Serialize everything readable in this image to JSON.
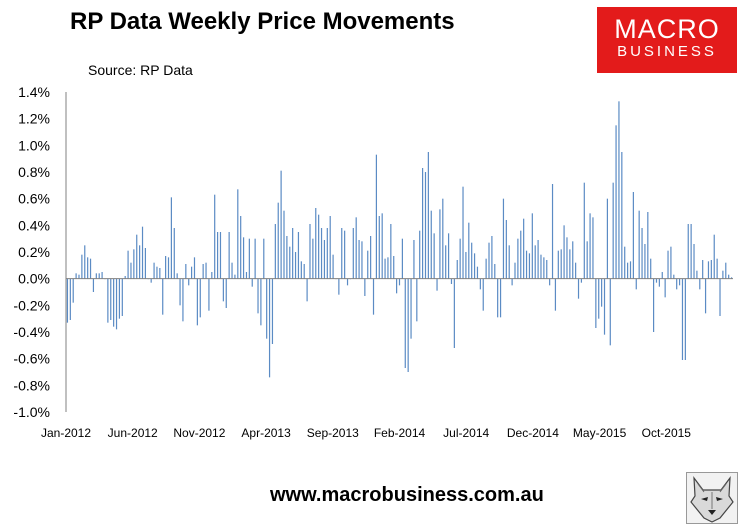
{
  "header": {
    "title": "RP Data Weekly Price Movements",
    "source": "Source: RP Data",
    "logo_line1": "MACRO",
    "logo_line2": "BUSINESS"
  },
  "footer": {
    "url": "www.macrobusiness.com.au"
  },
  "colors": {
    "bars": "#5b8bc4",
    "logo": "#e31b1b",
    "axis": "#808080"
  },
  "chart_data": {
    "type": "bar",
    "title": "RP Data Weekly Price Movements",
    "xlabel": "",
    "ylabel": "",
    "ylim": [
      -1.0,
      1.4
    ],
    "yticks": [
      "1.4%",
      "1.2%",
      "1.0%",
      "0.8%",
      "0.6%",
      "0.4%",
      "0.2%",
      "0.0%",
      "-0.2%",
      "-0.4%",
      "-0.6%",
      "-0.8%",
      "-1.0%"
    ],
    "xticks": [
      "Jan-2012",
      "Jun-2012",
      "Nov-2012",
      "Apr-2013",
      "Sep-2013",
      "Feb-2014",
      "Jul-2014",
      "Dec-2014",
      "May-2015",
      "Oct-2015"
    ],
    "grid": false,
    "legend": "none",
    "series": [
      {
        "values": [
          -0.33,
          -0.31,
          -0.18,
          0.04,
          0.03,
          0.18,
          0.25,
          0.16,
          0.15,
          -0.1,
          0.04,
          0.04,
          0.05,
          0.0,
          -0.33,
          -0.31,
          -0.36,
          -0.38,
          -0.3,
          -0.28,
          0.02,
          0.21,
          0.12,
          0.22,
          0.33,
          0.25,
          0.39,
          0.23,
          0.0,
          -0.03,
          0.12,
          0.09,
          0.08,
          -0.27,
          0.17,
          0.16,
          0.61,
          0.38,
          0.04,
          -0.2,
          -0.32,
          0.11,
          -0.05,
          0.09,
          0.16,
          -0.35,
          -0.29,
          0.11,
          0.12,
          -0.24,
          0.05,
          0.63,
          0.35,
          0.35,
          -0.17,
          -0.22,
          0.35,
          0.12,
          0.03,
          0.67,
          0.47,
          0.31,
          0.05,
          0.3,
          -0.06,
          0.3,
          -0.26,
          -0.35,
          0.3,
          -0.45,
          -0.74,
          -0.49,
          0.41,
          0.57,
          0.81,
          0.51,
          0.32,
          0.24,
          0.38,
          0.2,
          0.35,
          0.13,
          0.11,
          -0.17,
          0.41,
          0.3,
          0.53,
          0.48,
          0.38,
          0.29,
          0.38,
          0.47,
          0.18,
          0.0,
          -0.12,
          0.38,
          0.36,
          -0.05,
          0.0,
          0.38,
          0.46,
          0.29,
          0.28,
          -0.13,
          0.21,
          0.32,
          -0.27,
          0.93,
          0.47,
          0.49,
          0.15,
          0.16,
          0.41,
          0.17,
          -0.11,
          -0.05,
          0.3,
          -0.67,
          -0.7,
          -0.45,
          0.29,
          -0.32,
          0.36,
          0.83,
          0.8,
          0.95,
          0.51,
          0.34,
          -0.09,
          0.52,
          0.6,
          0.25,
          0.34,
          -0.04,
          -0.52,
          0.14,
          0.3,
          0.69,
          0.2,
          0.42,
          0.27,
          0.19,
          0.09,
          -0.08,
          -0.24,
          0.15,
          0.27,
          0.32,
          0.11,
          -0.29,
          -0.29,
          0.6,
          0.44,
          0.25,
          -0.05,
          0.12,
          0.3,
          0.36,
          0.45,
          0.21,
          0.19,
          0.49,
          0.25,
          0.29,
          0.18,
          0.16,
          0.14,
          -0.05,
          0.71,
          -0.24,
          0.21,
          0.22,
          0.4,
          0.31,
          0.22,
          0.28,
          0.12,
          -0.15,
          -0.03,
          0.72,
          0.28,
          0.49,
          0.46,
          -0.37,
          -0.3,
          -0.21,
          -0.42,
          0.6,
          -0.5,
          0.72,
          1.15,
          1.33,
          0.95,
          0.24,
          0.12,
          0.13,
          0.65,
          -0.08,
          0.51,
          0.38,
          0.26,
          0.5,
          0.15,
          -0.4,
          -0.03,
          -0.06,
          0.05,
          -0.14,
          0.21,
          0.24,
          0.03,
          -0.08,
          -0.05,
          -0.61,
          -0.61,
          0.41,
          0.41,
          0.26,
          0.06,
          -0.08,
          0.14,
          -0.26,
          0.13,
          0.14,
          0.33,
          0.15,
          -0.28,
          0.06,
          0.12,
          0.03,
          0.01
        ]
      }
    ]
  }
}
